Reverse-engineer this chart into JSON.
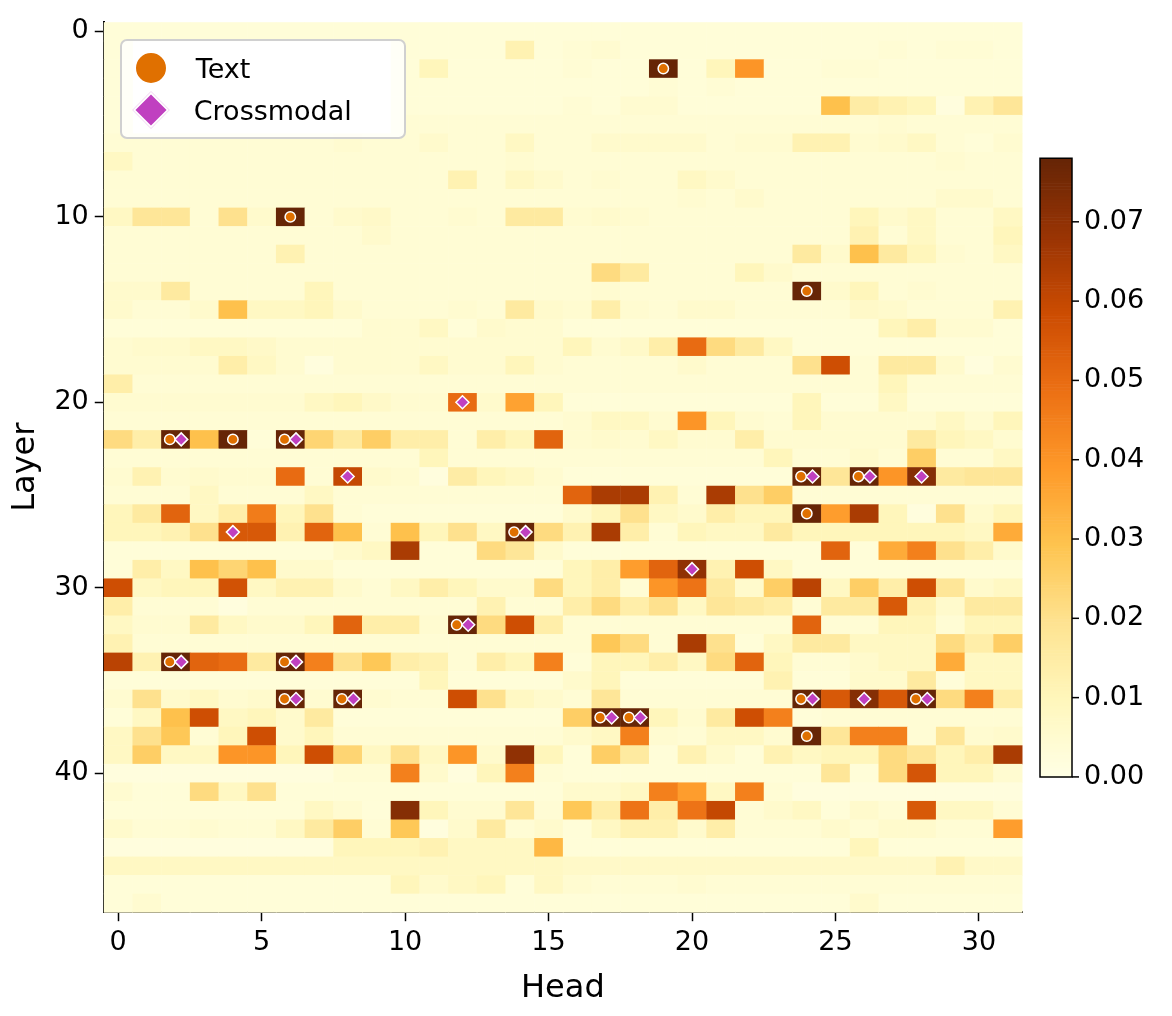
{
  "chart_data": {
    "type": "heatmap",
    "xlabel": "Head",
    "ylabel": "Layer",
    "xlim": [
      -0.5,
      31.5
    ],
    "xticks": [
      0,
      5,
      10,
      15,
      20,
      25,
      30
    ],
    "ylim": [
      47.5,
      -0.5
    ],
    "yticks": [
      0,
      10,
      20,
      30,
      40
    ],
    "clim": [
      0,
      0.078
    ],
    "cticks": [
      {
        "value": 0,
        "label": "0.00"
      },
      0.01,
      0.02,
      0.03,
      0.04,
      0.05,
      0.06,
      0.07
    ],
    "legend": "top left",
    "cells": [
      [
        0.003,
        0.003,
        0.003,
        0.003,
        0.003,
        0.003,
        0.003,
        0.003,
        0.003,
        0.003,
        0.003,
        0.003,
        0.003,
        0.003,
        0.003,
        0.003,
        0.003,
        0.003,
        0.003,
        0.003,
        0.003,
        0.003,
        0.003,
        0.003,
        0.003,
        0.003,
        0.003,
        0.003,
        0.003,
        0.003,
        0.003,
        0.003
      ],
      [
        0.003,
        null,
        null,
        null,
        null,
        null,
        null,
        null,
        null,
        null,
        0.003,
        0.003,
        0.003,
        0.003,
        0.012,
        0.003,
        0.004,
        0.005,
        0.003,
        0.003,
        0.003,
        0.003,
        0.003,
        0.003,
        0.003,
        0.003,
        0.003,
        0.004,
        0.003,
        0.004,
        0.004,
        0.003
      ],
      [
        0.003,
        null,
        null,
        null,
        null,
        null,
        null,
        null,
        null,
        null,
        0.003,
        0.01,
        0.003,
        0.003,
        0.003,
        0.003,
        0.004,
        0.003,
        0.003,
        0.078,
        0.003,
        0.01,
        0.04,
        0.003,
        0.003,
        0.004,
        0.004,
        0.003,
        0.003,
        0.003,
        0.003,
        0.003
      ],
      [
        0.003,
        null,
        null,
        null,
        null,
        null,
        null,
        null,
        null,
        null,
        0.003,
        0.003,
        0.003,
        0.003,
        0.003,
        0.003,
        0.003,
        0.003,
        0.003,
        0.004,
        0.003,
        0.004,
        0.003,
        0.003,
        0.003,
        0.003,
        0.003,
        0.003,
        0.003,
        0.003,
        0.003,
        0.003
      ],
      [
        0.003,
        null,
        null,
        null,
        null,
        null,
        null,
        null,
        null,
        null,
        0.003,
        0.003,
        0.003,
        0.003,
        0.003,
        0.003,
        0.004,
        0.003,
        0.005,
        0.005,
        0.003,
        0.003,
        0.003,
        0.003,
        0.003,
        0.03,
        0.015,
        0.012,
        0.01,
        0.002,
        0.012,
        0.018
      ],
      [
        0.003,
        null,
        null,
        null,
        null,
        null,
        null,
        null,
        null,
        null,
        0.004,
        0.004,
        0.004,
        0.004,
        0.004,
        0.004,
        0.004,
        0.004,
        0.004,
        0.004,
        0.004,
        0.004,
        0.004,
        0.004,
        0.004,
        0.004,
        0.004,
        0.005,
        0.004,
        0.004,
        0.004,
        0.004
      ],
      [
        0.004,
        0.004,
        0.004,
        0.004,
        0.004,
        0.004,
        0.004,
        0.004,
        0.005,
        0.004,
        0.004,
        0.006,
        0.004,
        0.004,
        0.008,
        0.004,
        0.004,
        0.006,
        0.006,
        0.006,
        0.006,
        0.004,
        0.005,
        0.005,
        0.012,
        0.012,
        0.005,
        0.006,
        0.008,
        0.004,
        0.003,
        0.005
      ],
      [
        0.008,
        0.004,
        0.004,
        0.004,
        0.004,
        0.004,
        0.004,
        0.004,
        0.004,
        0.004,
        0.004,
        0.004,
        0.004,
        0.004,
        0.005,
        0.004,
        0.004,
        0.004,
        0.004,
        0.004,
        0.004,
        0.004,
        0.004,
        0.004,
        0.004,
        0.004,
        0.004,
        0.004,
        0.004,
        0.005,
        0.004,
        0.004
      ],
      [
        0.004,
        0.004,
        0.004,
        0.004,
        0.004,
        0.004,
        0.004,
        0.004,
        0.004,
        0.004,
        0.004,
        0.004,
        0.012,
        0.004,
        0.008,
        0.006,
        0.004,
        0.005,
        0.004,
        0.004,
        0.008,
        0.006,
        0.004,
        0.004,
        0.004,
        0.004,
        0.004,
        0.004,
        0.004,
        0.004,
        0.004,
        0.004
      ],
      [
        0.004,
        0.004,
        0.004,
        0.004,
        0.004,
        0.004,
        0.004,
        0.004,
        0.004,
        0.004,
        0.004,
        0.004,
        0.004,
        0.004,
        0.004,
        0.004,
        0.004,
        0.004,
        0.004,
        0.004,
        0.005,
        0.004,
        0.006,
        0.004,
        0.004,
        0.004,
        0.004,
        0.004,
        0.004,
        0.006,
        0.006,
        0.004
      ],
      [
        0.008,
        0.018,
        0.018,
        0.004,
        0.02,
        0.006,
        0.078,
        0.004,
        0.006,
        0.007,
        0.004,
        0.004,
        0.005,
        0.004,
        0.016,
        0.016,
        0.005,
        0.006,
        0.005,
        0.004,
        0.004,
        0.004,
        0.004,
        0.004,
        0.004,
        0.004,
        0.01,
        0.006,
        0.008,
        0.004,
        0.004,
        0.008
      ],
      [
        0.004,
        0.004,
        0.004,
        0.004,
        0.004,
        0.004,
        0.004,
        0.004,
        0.004,
        0.006,
        0.004,
        0.004,
        0.004,
        0.004,
        0.004,
        0.004,
        0.004,
        0.004,
        0.004,
        0.004,
        0.004,
        0.004,
        0.004,
        0.004,
        0.004,
        0.004,
        0.012,
        0.004,
        0.008,
        0.004,
        0.004,
        0.01
      ],
      [
        0.004,
        0.004,
        0.004,
        0.004,
        0.004,
        0.004,
        0.012,
        0.004,
        0.004,
        0.004,
        0.004,
        0.004,
        0.004,
        0.004,
        0.004,
        0.004,
        0.004,
        0.004,
        0.004,
        0.004,
        0.004,
        0.004,
        0.004,
        0.004,
        0.016,
        0.006,
        0.03,
        0.016,
        0.01,
        0.005,
        0.004,
        0.008
      ],
      [
        0.004,
        0.004,
        0.004,
        0.004,
        0.004,
        0.004,
        0.004,
        0.004,
        0.004,
        0.004,
        0.004,
        0.004,
        0.004,
        0.004,
        0.004,
        0.004,
        0.004,
        0.022,
        0.016,
        0.004,
        0.004,
        0.004,
        0.01,
        0.006,
        0.004,
        0.004,
        0.004,
        0.004,
        0.004,
        0.004,
        0.004,
        0.004
      ],
      [
        0.006,
        0.006,
        0.016,
        0.004,
        0.004,
        0.004,
        0.004,
        0.01,
        0.004,
        0.004,
        0.004,
        0.004,
        0.004,
        0.004,
        0.004,
        0.004,
        0.004,
        0.005,
        0.004,
        0.004,
        0.004,
        0.004,
        0.004,
        0.004,
        0.078,
        0.006,
        0.01,
        0.004,
        0.005,
        0.004,
        0.004,
        0.004
      ],
      [
        0.006,
        0.004,
        0.004,
        0.006,
        0.03,
        0.008,
        0.008,
        0.01,
        0.006,
        0.004,
        0.004,
        0.004,
        0.005,
        0.004,
        0.016,
        0.006,
        0.005,
        0.014,
        0.005,
        0.004,
        0.006,
        0.006,
        0.004,
        0.004,
        0.004,
        0.004,
        0.007,
        0.006,
        0.004,
        0.004,
        0.004,
        0.012
      ],
      [
        0.003,
        0.003,
        0.003,
        0.003,
        0.003,
        0.003,
        0.003,
        0.003,
        0.003,
        0.005,
        0.005,
        0.008,
        0.003,
        0.006,
        0.005,
        0.005,
        0.003,
        0.003,
        0.003,
        0.003,
        0.003,
        0.003,
        0.003,
        0.003,
        0.003,
        0.003,
        0.003,
        0.01,
        0.014,
        0.005,
        0.005,
        0.003
      ],
      [
        0.005,
        0.006,
        0.006,
        0.008,
        0.008,
        0.007,
        0.005,
        0.005,
        0.005,
        0.005,
        0.005,
        0.005,
        0.005,
        0.005,
        0.005,
        0.005,
        0.01,
        0.005,
        0.007,
        0.014,
        0.05,
        0.022,
        0.016,
        0.008,
        0.003,
        0.003,
        0.003,
        0.003,
        0.003,
        0.003,
        0.003,
        0.003
      ],
      [
        0.005,
        0.005,
        0.005,
        0.005,
        0.014,
        0.008,
        0.005,
        0.002,
        0.005,
        0.005,
        0.005,
        0.008,
        0.005,
        0.005,
        0.01,
        0.005,
        0.004,
        0.004,
        0.004,
        0.004,
        0.006,
        0.004,
        0.004,
        0.004,
        0.02,
        0.058,
        0.004,
        0.016,
        0.016,
        0.006,
        0.002,
        0.005
      ],
      [
        0.014,
        0.004,
        0.004,
        0.004,
        0.004,
        0.004,
        0.004,
        0.004,
        0.004,
        0.004,
        0.004,
        0.004,
        0.004,
        0.004,
        0.004,
        0.004,
        0.004,
        0.004,
        0.004,
        0.004,
        0.004,
        0.004,
        0.004,
        0.004,
        0.004,
        0.004,
        0.004,
        0.01,
        0.004,
        0.004,
        0.004,
        0.004
      ],
      [
        0.005,
        0.005,
        0.005,
        0.005,
        0.005,
        0.005,
        0.005,
        0.008,
        0.01,
        0.007,
        0.005,
        0.005,
        0.05,
        0.006,
        0.037,
        0.01,
        0.003,
        0.003,
        0.003,
        0.003,
        0.003,
        0.003,
        0.003,
        0.003,
        0.01,
        0.003,
        0.003,
        0.008,
        0.003,
        0.003,
        0.003,
        0.003
      ],
      [
        0.004,
        0.004,
        0.004,
        0.004,
        0.004,
        0.004,
        0.004,
        0.004,
        0.004,
        0.004,
        0.004,
        0.004,
        0.004,
        0.004,
        0.004,
        0.004,
        0.005,
        0.008,
        0.008,
        0.005,
        0.04,
        0.01,
        0.005,
        0.004,
        0.01,
        0.005,
        0.005,
        0.005,
        0.005,
        0.008,
        0.005,
        0.01
      ],
      [
        0.022,
        0.014,
        0.078,
        0.03,
        0.078,
        0.003,
        0.078,
        0.024,
        0.016,
        0.026,
        0.014,
        0.014,
        0.004,
        0.014,
        0.01,
        0.052,
        0.005,
        0.006,
        0.005,
        0.008,
        0.005,
        0.005,
        0.014,
        0.005,
        0.005,
        0.005,
        0.005,
        0.005,
        0.016,
        0.01,
        0.008,
        0.005
      ],
      [
        0.004,
        0.004,
        0.004,
        0.004,
        0.004,
        0.004,
        0.004,
        0.004,
        0.004,
        0.004,
        0.004,
        0.01,
        0.004,
        0.004,
        0.004,
        0.004,
        0.004,
        0.004,
        0.004,
        0.004,
        0.004,
        0.004,
        0.004,
        0.01,
        0.004,
        0.004,
        0.006,
        0.004,
        0.026,
        0.004,
        0.004,
        0.008
      ],
      [
        0.005,
        0.012,
        0.005,
        0.006,
        0.005,
        0.005,
        0.05,
        0.004,
        0.06,
        0.006,
        0.005,
        0.002,
        0.015,
        0.01,
        0.008,
        0.005,
        0.003,
        0.003,
        0.003,
        0.003,
        0.003,
        0.003,
        0.003,
        0.003,
        0.078,
        0.018,
        0.078,
        0.04,
        0.072,
        0.016,
        0.018,
        0.018
      ],
      [
        0.004,
        0.004,
        0.004,
        0.008,
        0.004,
        0.004,
        0.004,
        0.008,
        0.004,
        0.004,
        0.004,
        0.004,
        0.004,
        0.004,
        0.004,
        0.004,
        0.052,
        0.065,
        0.065,
        0.012,
        0.004,
        0.065,
        0.02,
        0.026,
        0.004,
        0.004,
        0.004,
        0.004,
        0.004,
        0.004,
        0.004,
        0.004
      ],
      [
        0.01,
        0.016,
        0.052,
        0.008,
        0.014,
        0.046,
        0.01,
        0.02,
        0.004,
        0.003,
        0.003,
        0.003,
        0.003,
        0.003,
        0.003,
        0.003,
        0.006,
        0.01,
        0.02,
        0.008,
        0.006,
        0.014,
        0.01,
        0.01,
        0.078,
        0.038,
        0.065,
        0.01,
        0.002,
        0.02,
        0.006,
        0.01
      ],
      [
        0.01,
        0.01,
        0.012,
        0.02,
        0.055,
        0.055,
        0.012,
        0.052,
        0.03,
        0.004,
        0.03,
        0.01,
        0.02,
        0.008,
        0.078,
        0.022,
        0.012,
        0.065,
        0.014,
        0.004,
        0.01,
        0.008,
        0.008,
        0.016,
        0.01,
        0.01,
        0.01,
        0.01,
        0.01,
        0.01,
        0.008,
        0.035
      ],
      [
        0.003,
        0.003,
        0.003,
        0.003,
        0.003,
        0.003,
        0.003,
        0.003,
        0.006,
        0.008,
        0.065,
        0.003,
        0.003,
        0.022,
        0.018,
        0.006,
        0.003,
        0.003,
        0.003,
        0.003,
        0.003,
        0.003,
        0.003,
        0.003,
        0.003,
        0.052,
        0.003,
        0.035,
        0.045,
        0.02,
        0.014,
        0.006
      ],
      [
        0.003,
        0.014,
        0.008,
        0.03,
        0.024,
        0.03,
        0.006,
        0.006,
        0.003,
        0.003,
        0.003,
        0.003,
        0.003,
        0.003,
        0.003,
        0.003,
        0.01,
        0.014,
        0.038,
        0.052,
        0.07,
        0.012,
        0.058,
        0.008,
        0.003,
        0.003,
        0.003,
        0.003,
        0.003,
        0.003,
        0.003,
        0.003
      ],
      [
        0.058,
        0.008,
        0.01,
        0.01,
        0.057,
        0.008,
        0.012,
        0.012,
        0.006,
        0.004,
        0.008,
        0.014,
        0.01,
        0.006,
        0.006,
        0.022,
        0.01,
        0.014,
        0.004,
        0.04,
        0.048,
        0.016,
        0.006,
        0.026,
        0.062,
        0.008,
        0.026,
        0.014,
        0.058,
        0.018,
        0.006,
        0.008
      ],
      [
        0.014,
        0.004,
        0.004,
        0.004,
        0.002,
        0.004,
        0.004,
        0.004,
        0.004,
        0.004,
        0.004,
        0.004,
        0.004,
        0.012,
        0.004,
        0.004,
        0.014,
        0.022,
        0.014,
        0.02,
        0.008,
        0.018,
        0.016,
        0.014,
        0.004,
        0.016,
        0.016,
        0.055,
        0.012,
        0.006,
        0.016,
        0.016
      ],
      [
        0.008,
        0.005,
        0.005,
        0.016,
        0.008,
        0.006,
        0.006,
        0.01,
        0.052,
        0.014,
        0.014,
        0.005,
        0.078,
        0.022,
        0.058,
        0.014,
        0.004,
        0.004,
        0.004,
        0.004,
        0.004,
        0.004,
        0.004,
        0.004,
        0.052,
        0.004,
        0.004,
        0.01,
        0.01,
        0.004,
        0.01,
        0.01
      ],
      [
        0.012,
        0.004,
        0.004,
        0.004,
        0.004,
        0.004,
        0.004,
        0.004,
        0.004,
        0.004,
        0.004,
        0.004,
        0.004,
        0.004,
        0.004,
        0.004,
        0.004,
        0.028,
        0.022,
        0.004,
        0.065,
        0.02,
        0.003,
        0.008,
        0.016,
        0.016,
        0.008,
        0.008,
        0.008,
        0.022,
        0.014,
        0.026
      ],
      [
        0.062,
        0.012,
        0.078,
        0.052,
        0.05,
        0.016,
        0.078,
        0.045,
        0.02,
        0.028,
        0.014,
        0.012,
        0.004,
        0.014,
        0.01,
        0.045,
        0.003,
        0.01,
        0.01,
        0.014,
        0.008,
        0.022,
        0.052,
        0.01,
        0.004,
        0.004,
        0.006,
        0.008,
        0.008,
        0.035,
        0.008,
        0.008
      ],
      [
        0.003,
        0.003,
        0.003,
        0.003,
        0.003,
        0.003,
        0.003,
        0.003,
        0.003,
        0.003,
        0.003,
        0.01,
        0.003,
        0.003,
        0.003,
        0.003,
        0.006,
        0.01,
        0.003,
        0.003,
        0.003,
        0.003,
        0.003,
        0.012,
        0.003,
        0.003,
        0.006,
        0.006,
        0.016,
        0.003,
        0.008,
        0.008
      ],
      [
        0.005,
        0.02,
        0.006,
        0.008,
        0.005,
        0.006,
        0.078,
        0.005,
        0.078,
        0.005,
        0.004,
        0.004,
        0.058,
        0.02,
        0.008,
        0.006,
        0.004,
        0.018,
        0.004,
        0.004,
        0.004,
        0.004,
        0.004,
        0.004,
        0.078,
        0.055,
        0.072,
        0.055,
        0.078,
        0.022,
        0.045,
        0.014
      ],
      [
        0.003,
        0.008,
        0.03,
        0.058,
        0.008,
        0.01,
        0.006,
        0.016,
        0.003,
        0.003,
        0.003,
        0.003,
        0.003,
        0.003,
        0.003,
        0.003,
        0.026,
        0.078,
        0.078,
        0.01,
        0.005,
        0.016,
        0.058,
        0.045,
        0.003,
        0.004,
        0.004,
        0.004,
        0.004,
        0.004,
        0.004,
        0.004
      ],
      [
        0.008,
        0.02,
        0.028,
        0.004,
        0.01,
        0.058,
        0.006,
        0.01,
        0.004,
        0.004,
        0.004,
        0.004,
        0.004,
        0.004,
        0.004,
        0.004,
        0.006,
        0.008,
        0.045,
        0.005,
        0.004,
        0.008,
        0.008,
        0.005,
        0.078,
        0.018,
        0.045,
        0.045,
        0.004,
        0.018,
        0.005,
        0.006
      ],
      [
        0.008,
        0.026,
        0.008,
        0.008,
        0.04,
        0.04,
        0.01,
        0.058,
        0.024,
        0.008,
        0.02,
        0.008,
        0.04,
        0.006,
        0.07,
        0.01,
        0.003,
        0.026,
        0.016,
        0.003,
        0.012,
        0.006,
        0.003,
        0.012,
        0.008,
        0.01,
        0.01,
        0.022,
        0.018,
        0.01,
        0.014,
        0.065
      ],
      [
        0.002,
        0.002,
        0.002,
        0.002,
        0.002,
        0.002,
        0.002,
        0.002,
        0.004,
        0.004,
        0.045,
        0.006,
        0.002,
        0.01,
        0.045,
        0.004,
        0.003,
        0.003,
        0.003,
        0.003,
        0.003,
        0.003,
        0.003,
        0.003,
        0.003,
        0.018,
        0.003,
        0.022,
        0.056,
        0.01,
        0.01,
        0.005
      ],
      [
        0.005,
        0.003,
        0.003,
        0.022,
        0.008,
        0.02,
        0.003,
        0.003,
        0.003,
        0.003,
        0.003,
        0.003,
        0.003,
        0.003,
        0.003,
        0.003,
        0.006,
        0.006,
        0.008,
        0.045,
        0.038,
        0.008,
        0.045,
        0.004,
        0.002,
        0.002,
        0.002,
        0.002,
        0.002,
        0.002,
        0.002,
        0.002
      ],
      [
        0.003,
        0.003,
        0.003,
        0.003,
        0.003,
        0.003,
        0.003,
        0.008,
        0.005,
        0.003,
        0.072,
        0.01,
        0.005,
        0.005,
        0.018,
        0.004,
        0.028,
        0.014,
        0.048,
        0.014,
        0.048,
        0.06,
        0.004,
        0.006,
        0.008,
        0.003,
        0.006,
        0.004,
        0.055,
        0.008,
        0.008,
        0.004
      ],
      [
        0.006,
        0.004,
        0.004,
        0.005,
        0.004,
        0.004,
        0.008,
        0.016,
        0.026,
        0.004,
        0.028,
        0.002,
        0.006,
        0.016,
        0.004,
        0.006,
        0.003,
        0.008,
        0.012,
        0.012,
        0.006,
        0.014,
        0.004,
        0.004,
        0.004,
        0.006,
        0.004,
        0.006,
        0.006,
        0.004,
        0.004,
        0.038
      ],
      [
        0.002,
        0.002,
        0.002,
        0.002,
        0.002,
        0.002,
        0.002,
        0.002,
        0.01,
        0.01,
        0.01,
        0.012,
        0.008,
        0.008,
        0.008,
        0.032,
        0.003,
        0.003,
        0.003,
        0.003,
        0.003,
        0.003,
        0.003,
        0.003,
        0.003,
        0.003,
        0.01,
        0.003,
        0.003,
        0.003,
        0.003,
        0.003
      ],
      [
        0.008,
        0.008,
        0.008,
        0.008,
        0.008,
        0.008,
        0.008,
        0.008,
        0.008,
        0.008,
        0.008,
        0.008,
        0.008,
        0.008,
        0.008,
        0.008,
        0.007,
        0.007,
        0.007,
        0.007,
        0.007,
        0.007,
        0.007,
        0.007,
        0.007,
        0.007,
        0.007,
        0.007,
        0.007,
        0.012,
        0.007,
        0.007
      ],
      [
        0.003,
        0.003,
        0.003,
        0.003,
        0.003,
        0.003,
        0.003,
        0.003,
        0.003,
        0.003,
        0.01,
        0.006,
        0.008,
        0.01,
        0.003,
        0.008,
        0.005,
        0.004,
        0.004,
        0.004,
        0.005,
        0.004,
        0.004,
        0.004,
        0.004,
        0.004,
        0.004,
        0.004,
        0.004,
        0.004,
        0.004,
        0.004
      ],
      [
        0.003,
        0.005,
        0.003,
        0.003,
        0.003,
        0.003,
        0.003,
        0.003,
        0.003,
        0.003,
        0.003,
        0.003,
        0.003,
        0.003,
        0.003,
        0.003,
        0.003,
        0.003,
        0.003,
        0.003,
        0.003,
        0.003,
        0.003,
        0.003,
        0.003,
        0.003,
        0.006,
        0.003,
        0.003,
        0.003,
        0.003,
        0.003
      ]
    ],
    "series": [
      {
        "name": "Text",
        "type": "scatter",
        "marker": "circle",
        "color": "#e07000",
        "x": [
          19,
          6,
          24,
          1.8,
          4,
          5.8,
          23.8,
          25.8,
          24,
          13.8,
          11.8,
          1.8,
          5.8,
          5.8,
          7.8,
          23.8,
          27.8,
          16.8,
          17.8,
          24
        ],
        "values": [
          2,
          10,
          14,
          22,
          22,
          22,
          24,
          24,
          26,
          27,
          32,
          34,
          34,
          36,
          36,
          36,
          36,
          37,
          37,
          38
        ]
      },
      {
        "name": "Crossmodal",
        "type": "scatter",
        "marker": "diamond",
        "color": "#c040c0",
        "x": [
          12,
          2.2,
          6.2,
          8,
          24.2,
          26.2,
          28,
          4,
          14.2,
          20,
          12.2,
          2.2,
          6.2,
          6.2,
          8.2,
          24.2,
          26,
          28.2,
          17.2,
          18.2
        ],
        "values": [
          20,
          22,
          22,
          24,
          24,
          24,
          24,
          27,
          27,
          29,
          32,
          34,
          34,
          36,
          36,
          36,
          36,
          36,
          37,
          37
        ]
      }
    ]
  }
}
